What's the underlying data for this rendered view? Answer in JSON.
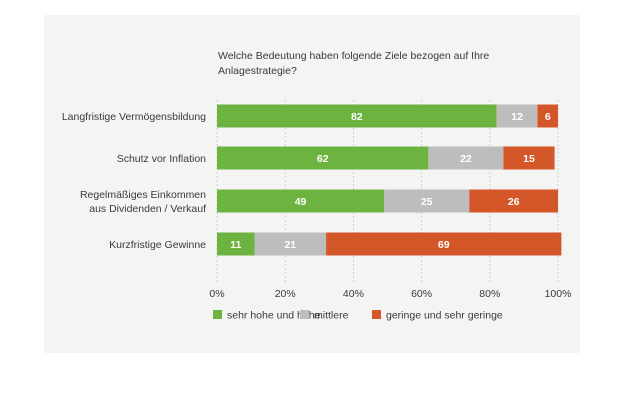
{
  "chart_data": {
    "type": "bar",
    "orientation": "horizontal",
    "stacked": true,
    "title": "Welche Bedeutung haben folgende Ziele bezogen auf Ihre Anlagestrategie?",
    "categories": [
      [
        "Langfristige Vermögensbildung"
      ],
      [
        "Schutz vor Inflation"
      ],
      [
        "Regelmäßiges Einkommen",
        "aus Dividenden / Verkauf"
      ],
      [
        "Kurzfristige Gewinne"
      ]
    ],
    "series": [
      {
        "name": "sehr hohe und hohe",
        "color": "#6db33f",
        "values": [
          82,
          62,
          49,
          11
        ]
      },
      {
        "name": "mittlere",
        "color": "#bdbdbd",
        "values": [
          12,
          22,
          25,
          21
        ]
      },
      {
        "name": "geringe und sehr geringe",
        "color": "#d4572a",
        "values": [
          6,
          15,
          26,
          69
        ]
      }
    ],
    "xlim": [
      0,
      100
    ],
    "xticks": [
      0,
      20,
      40,
      60,
      80,
      100
    ],
    "xtick_labels": [
      "0%",
      "20%",
      "40%",
      "60%",
      "80%",
      "100%"
    ],
    "grid": true,
    "legend_position": "bottom"
  }
}
